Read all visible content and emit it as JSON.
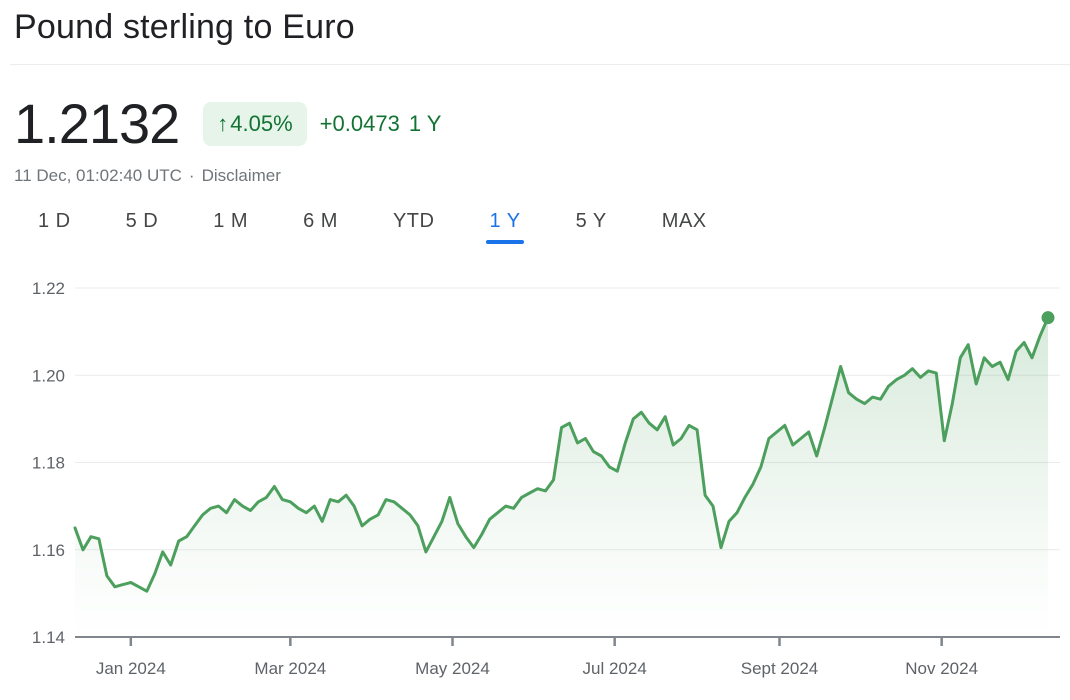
{
  "header": {
    "title": "Pound sterling to Euro"
  },
  "quote": {
    "price": "1.2132",
    "change_arrow": "↑",
    "change_percent": "4.05%",
    "change_absolute": "+0.0473",
    "change_period": "1 Y",
    "timestamp": "11 Dec, 01:02:40 UTC",
    "separator": "·",
    "disclaimer_label": "Disclaimer"
  },
  "range_tabs": {
    "items": [
      {
        "label": "1 D",
        "selected": false
      },
      {
        "label": "5 D",
        "selected": false
      },
      {
        "label": "1 M",
        "selected": false
      },
      {
        "label": "6 M",
        "selected": false
      },
      {
        "label": "YTD",
        "selected": false
      },
      {
        "label": "1 Y",
        "selected": true
      },
      {
        "label": "5 Y",
        "selected": false
      },
      {
        "label": "MAX",
        "selected": false
      }
    ]
  },
  "colors": {
    "line_green": "#4c9f5c",
    "badge_bg": "#e6f4ea",
    "positive_green": "#137333",
    "accent_blue": "#1a73e8",
    "grid_line": "#e9ebec",
    "axis_line": "#80868b",
    "text_primary": "#202124",
    "text_secondary": "#70757a",
    "tick_label": "#5f6368"
  },
  "chart_data": {
    "type": "line",
    "title": "Pound sterling to Euro, 1 year",
    "xlabel": "",
    "ylabel": "",
    "ylim": [
      1.14,
      1.22
    ],
    "yticks": [
      1.14,
      1.16,
      1.18,
      1.2,
      1.22
    ],
    "ytick_labels": [
      "1.14",
      "1.16",
      "1.18",
      "1.20",
      "1.22"
    ],
    "xticks": [
      {
        "label": "Jan 2024",
        "day_offset": 21
      },
      {
        "label": "Mar 2024",
        "day_offset": 81
      },
      {
        "label": "May 2024",
        "day_offset": 142
      },
      {
        "label": "Jul 2024",
        "day_offset": 203
      },
      {
        "label": "Sept 2024",
        "day_offset": 265
      },
      {
        "label": "Nov 2024",
        "day_offset": 326
      }
    ],
    "total_days": 366,
    "start_date": "2023-12-11",
    "end_date": "2024-12-11",
    "interval_days": 3,
    "grid": true,
    "legend": false,
    "end_marker": {
      "value": 1.2132,
      "shape": "dot"
    },
    "series": [
      {
        "name": "GBP/EUR",
        "values": [
          1.165,
          1.16,
          1.163,
          1.1625,
          1.154,
          1.1515,
          1.152,
          1.1525,
          1.1515,
          1.1505,
          1.1545,
          1.1595,
          1.1565,
          1.162,
          1.163,
          1.1655,
          1.168,
          1.1695,
          1.17,
          1.1685,
          1.1715,
          1.17,
          1.169,
          1.171,
          1.172,
          1.1745,
          1.1715,
          1.171,
          1.1695,
          1.1685,
          1.17,
          1.1665,
          1.1715,
          1.171,
          1.1725,
          1.17,
          1.1655,
          1.167,
          1.168,
          1.1715,
          1.171,
          1.1695,
          1.168,
          1.1655,
          1.1595,
          1.163,
          1.1665,
          1.172,
          1.166,
          1.163,
          1.1605,
          1.1635,
          1.167,
          1.1685,
          1.17,
          1.1695,
          1.172,
          1.173,
          1.174,
          1.1735,
          1.176,
          1.188,
          1.189,
          1.1845,
          1.1855,
          1.1825,
          1.1815,
          1.179,
          1.178,
          1.1845,
          1.19,
          1.1915,
          1.189,
          1.1875,
          1.1905,
          1.184,
          1.1855,
          1.1885,
          1.1875,
          1.1725,
          1.17,
          1.1605,
          1.1665,
          1.1685,
          1.172,
          1.175,
          1.179,
          1.1855,
          1.187,
          1.1885,
          1.184,
          1.1855,
          1.187,
          1.1815,
          1.188,
          1.195,
          1.202,
          1.196,
          1.1945,
          1.1935,
          1.195,
          1.1945,
          1.1975,
          1.199,
          1.2,
          1.2015,
          1.1995,
          1.201,
          1.2005,
          1.185,
          1.1935,
          1.204,
          1.207,
          1.198,
          1.204,
          1.202,
          1.203,
          1.199,
          1.2055,
          1.2075,
          1.204,
          1.209,
          1.2132
        ]
      }
    ]
  }
}
